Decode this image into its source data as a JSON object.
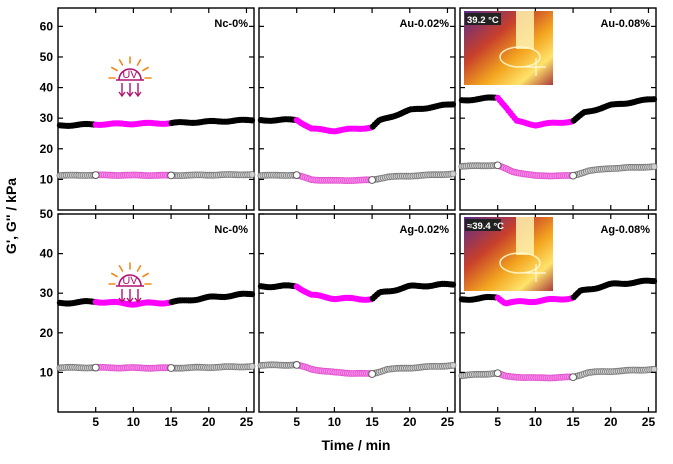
{
  "chart_data": {
    "type": "scatter",
    "title": "",
    "xlabel": "Time / min",
    "ylabel": "G', G'' / kPa",
    "xlim": [
      0,
      26
    ],
    "x_ticks": [
      "5",
      "10",
      "15",
      "20",
      "25"
    ],
    "uv_window_min": [
      5,
      15
    ],
    "uv_label": "UV",
    "rows": [
      {
        "ylim": [
          0,
          66
        ],
        "y_ticks": [
          "10",
          "20",
          "30",
          "40",
          "50",
          "60"
        ]
      },
      {
        "ylim": [
          0,
          50
        ],
        "y_ticks": [
          "10",
          "20",
          "30",
          "40",
          "50"
        ]
      }
    ],
    "panels": [
      {
        "label": "Nc-0%",
        "row": 0,
        "col": 0,
        "uv_icon": true,
        "thermal_inset": null,
        "Gp": [
          [
            0.2,
            27.6
          ],
          [
            5,
            28.0
          ],
          [
            15,
            28.4
          ],
          [
            26,
            29.4
          ]
        ],
        "Gpp": [
          [
            0.2,
            11.3
          ],
          [
            5,
            11.4
          ],
          [
            15,
            11.3
          ],
          [
            26,
            11.6
          ]
        ]
      },
      {
        "label": "Au-0.02%",
        "row": 0,
        "col": 1,
        "uv_icon": false,
        "thermal_inset": null,
        "Gp": [
          [
            0.2,
            29.3
          ],
          [
            5,
            29.5
          ],
          [
            7,
            26.5
          ],
          [
            10,
            25.9
          ],
          [
            15,
            27.0
          ],
          [
            16,
            29.2
          ],
          [
            20,
            32.6
          ],
          [
            26,
            34.7
          ]
        ],
        "Gpp": [
          [
            0.2,
            11.3
          ],
          [
            5,
            11.4
          ],
          [
            7,
            9.9
          ],
          [
            10,
            9.6
          ],
          [
            15,
            9.8
          ],
          [
            17,
            10.8
          ],
          [
            26,
            11.8
          ]
        ]
      },
      {
        "label": "Au-0.08%",
        "row": 0,
        "col": 2,
        "uv_icon": false,
        "thermal_inset": "39.2 °C",
        "Gp": [
          [
            0.2,
            35.8
          ],
          [
            5,
            36.8
          ],
          [
            6,
            34.0
          ],
          [
            7.5,
            29.0
          ],
          [
            10,
            27.8
          ],
          [
            15,
            29.0
          ],
          [
            16.5,
            31.8
          ],
          [
            20,
            34.2
          ],
          [
            26,
            36.4
          ]
        ],
        "Gpp": [
          [
            0.2,
            14.3
          ],
          [
            5,
            14.6
          ],
          [
            7,
            12.5
          ],
          [
            10,
            11.2
          ],
          [
            15,
            11.2
          ],
          [
            17,
            12.8
          ],
          [
            20,
            13.6
          ],
          [
            26,
            14.2
          ]
        ]
      },
      {
        "label": "Nc-0%",
        "row": 1,
        "col": 0,
        "uv_icon": true,
        "thermal_inset": null,
        "Gp": [
          [
            0.2,
            27.5
          ],
          [
            5,
            27.9
          ],
          [
            10,
            27.3
          ],
          [
            15,
            27.7
          ],
          [
            20,
            28.9
          ],
          [
            26,
            29.9
          ]
        ],
        "Gpp": [
          [
            0.2,
            11.2
          ],
          [
            5,
            11.2
          ],
          [
            15,
            11.1
          ],
          [
            26,
            11.5
          ]
        ]
      },
      {
        "label": "Ag-0.02%",
        "row": 1,
        "col": 1,
        "uv_icon": false,
        "thermal_inset": null,
        "Gp": [
          [
            0.2,
            31.7
          ],
          [
            5,
            31.8
          ],
          [
            7,
            29.5
          ],
          [
            10,
            28.7
          ],
          [
            15,
            28.5
          ],
          [
            16,
            30.0
          ],
          [
            20,
            31.7
          ],
          [
            26,
            32.3
          ]
        ],
        "Gpp": [
          [
            0.2,
            11.8
          ],
          [
            5,
            11.9
          ],
          [
            7,
            10.8
          ],
          [
            10,
            10.0
          ],
          [
            15,
            9.6
          ],
          [
            17,
            10.8
          ],
          [
            26,
            11.8
          ]
        ]
      },
      {
        "label": "Ag-0.08%",
        "row": 1,
        "col": 2,
        "uv_icon": false,
        "thermal_inset": "≈39.4 °C",
        "Gp": [
          [
            0.2,
            28.4
          ],
          [
            5,
            29.0
          ],
          [
            6,
            27.6
          ],
          [
            10,
            28.0
          ],
          [
            15,
            28.8
          ],
          [
            16,
            30.5
          ],
          [
            20,
            32.2
          ],
          [
            26,
            33.2
          ]
        ],
        "Gpp": [
          [
            0.2,
            9.2
          ],
          [
            5,
            9.8
          ],
          [
            6,
            9.0
          ],
          [
            10,
            8.6
          ],
          [
            15,
            8.8
          ],
          [
            17,
            10.0
          ],
          [
            26,
            10.8
          ]
        ]
      }
    ]
  },
  "colors": {
    "gp_outside": "#000000",
    "gp_uv": "#ff00ff",
    "gpp_outside": "#7a7a7a",
    "gpp_uv": "#ff88ee",
    "uv_icon": "#b0106e",
    "uv_rays": "#f08a1c",
    "frame": "#000000"
  }
}
